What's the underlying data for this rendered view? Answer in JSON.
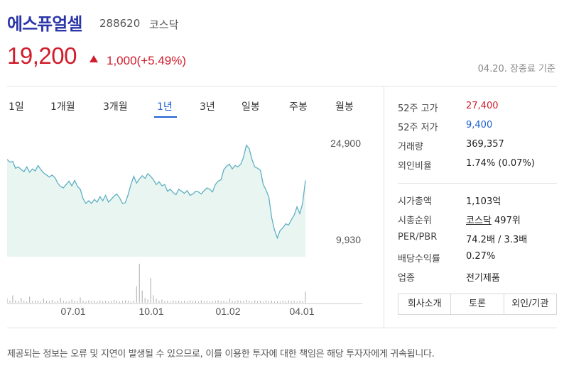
{
  "stock": {
    "name": "에스퓨얼셀",
    "code": "288620",
    "market": "코스닥",
    "price": "19,200",
    "change": "1,000(+5.49%)",
    "close_note": "04.20. 장종료 기준"
  },
  "tabs": [
    "1일",
    "1개월",
    "3개월",
    "1년",
    "3년",
    "일봉",
    "주봉",
    "월봉"
  ],
  "active_tab": "1년",
  "chart_data": {
    "type": "area",
    "y_max_label": "24,900",
    "y_min_label": "9,930",
    "x_tick_labels": [
      "07.01",
      "10.01",
      "01.02",
      "04.01"
    ],
    "price_series": [
      22300,
      21900,
      22000,
      21000,
      21200,
      20800,
      20500,
      21200,
      20400,
      20900,
      20600,
      21400,
      20800,
      20300,
      20000,
      19700,
      20000,
      19600,
      18800,
      18300,
      18100,
      18600,
      19100,
      18400,
      19200,
      18300,
      17900,
      16500,
      15800,
      16200,
      15800,
      16400,
      16000,
      16800,
      16200,
      17000,
      16000,
      16400,
      16900,
      17200,
      16600,
      15800,
      15900,
      17100,
      18600,
      19800,
      18800,
      19400,
      19900,
      19500,
      20200,
      19800,
      19300,
      18600,
      19000,
      18400,
      18600,
      17600,
      17900,
      17400,
      17100,
      17900,
      17600,
      17300,
      17700,
      17000,
      17200,
      17600,
      17500,
      17200,
      17700,
      18100,
      17900,
      17500,
      18600,
      19100,
      19300,
      20800,
      21300,
      21600,
      20900,
      21400,
      21200,
      21600,
      22600,
      24400,
      23900,
      22300,
      21200,
      21000,
      20700,
      18600,
      17800,
      16700,
      13700,
      11900,
      10700,
      11800,
      12200,
      12800,
      12600,
      13400,
      14100,
      15300,
      14300,
      15800,
      19200
    ],
    "volume_series": [
      0.1,
      0.05,
      0.18,
      0.06,
      0.04,
      0.12,
      0.05,
      0.03,
      0.15,
      0.04,
      0.06,
      0.05,
      0.03,
      0.1,
      0.05,
      0.04,
      0.07,
      0.03,
      0.05,
      0.12,
      0.05,
      0.03,
      0.04,
      0.08,
      0.05,
      0.04,
      0.13,
      0.05,
      0.03,
      0.06,
      0.04,
      0.05,
      0.03,
      0.06,
      0.04,
      0.05,
      0.03,
      0.04,
      0.07,
      0.05,
      0.03,
      0.04,
      0.06,
      0.05,
      0.03,
      0.05,
      0.4,
      0.95,
      0.3,
      0.12,
      0.08,
      0.6,
      0.18,
      0.1,
      0.05,
      0.08,
      0.04,
      0.05,
      0.03,
      0.06,
      0.04,
      0.05,
      0.03,
      0.05,
      0.04,
      0.06,
      0.04,
      0.05,
      0.03,
      0.06,
      0.04,
      0.05,
      0.03,
      0.04,
      0.05,
      0.06,
      0.04,
      0.05,
      0.03,
      0.1,
      0.05,
      0.04,
      0.06,
      0.05,
      0.04,
      0.07,
      0.05,
      0.03,
      0.06,
      0.04,
      0.05,
      0.03,
      0.06,
      0.04,
      0.05,
      0.03,
      0.04,
      0.03,
      0.05,
      0.04,
      0.06,
      0.04,
      0.05,
      0.03,
      0.05,
      0.04,
      0.27
    ]
  },
  "info": {
    "high52_label": "52주 고가",
    "high52_value": "27,400",
    "low52_label": "52주 저가",
    "low52_value": "9,400",
    "volume_label": "거래량",
    "volume_value": "369,357",
    "foreign_label": "외인비율",
    "foreign_value": "1.74% (0.07%)",
    "marketcap_label": "시가총액",
    "marketcap_value": "1,103억",
    "rank_label": "시총순위",
    "rank_market": "코스닥",
    "rank_value": "497위",
    "perpbr_label": "PER/PBR",
    "perpbr_value": "74.2배 / 3.3배",
    "dividend_label": "배당수익률",
    "dividend_value": "0.27%",
    "sector_label": "업종",
    "sector_value": "전기제품"
  },
  "buttons": [
    "회사소개",
    "토론",
    "외인/기관"
  ],
  "footer": "제공되는 정보는 오류 및 지연이 발생될 수 있으므로, 이를 이용한 투자에 대한 책임은 해당 투자자에게 귀속됩니다.",
  "colors": {
    "price_up": "#d01c2b",
    "accent": "#1d5fd1",
    "name": "#2b35a8",
    "chart_line": "#5fb0c4",
    "chart_fill": "#e9f5f1",
    "volume": "#aaaaaa"
  }
}
